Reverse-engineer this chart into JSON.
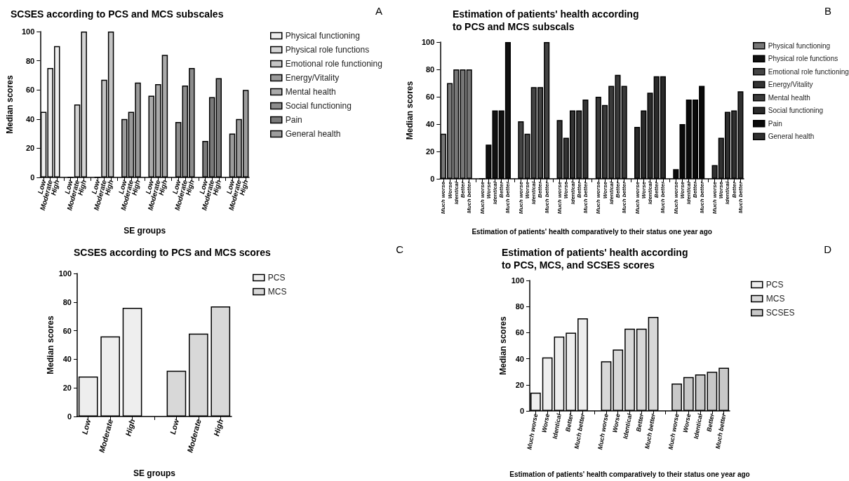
{
  "chart_data": [
    {
      "type": "bar",
      "title": "SCSES according to PCS and MCS subscales",
      "xlabel": "SE groups",
      "ylabel": "Median scores",
      "annotations": [
        "A"
      ],
      "legend": "right",
      "grid": false,
      "ylim": [
        0,
        100
      ],
      "yticks": [
        0,
        20,
        40,
        60,
        80,
        100
      ],
      "categories": [
        "Low",
        "Moderate",
        "High",
        null,
        "Low",
        "Moderate",
        "High",
        null,
        "Low",
        "Moderate",
        "High",
        null,
        "Low",
        "Moderate",
        "High",
        null,
        "Low",
        "Moderate",
        "High",
        null,
        "Low",
        "Moderate",
        "High",
        null,
        "Low",
        "Moderate",
        "High",
        null,
        "Low",
        "Moderate",
        "High"
      ],
      "series": [
        {
          "name": "Physical functioning",
          "color": "#eeeeee",
          "values": [
            45,
            75,
            90,
            null,
            null,
            null,
            null,
            null,
            null,
            null,
            null,
            null,
            null,
            null,
            null,
            null,
            null,
            null,
            null,
            null,
            null,
            null,
            null,
            null,
            null,
            null,
            null,
            null,
            null,
            null,
            null
          ]
        },
        {
          "name": "Physical role functions",
          "color": "#d4d4d4",
          "values": [
            null,
            null,
            null,
            null,
            0,
            50,
            100,
            null,
            null,
            null,
            null,
            null,
            null,
            null,
            null,
            null,
            null,
            null,
            null,
            null,
            null,
            null,
            null,
            null,
            null,
            null,
            null,
            null,
            null,
            null,
            null
          ]
        },
        {
          "name": "Emotional role functioning",
          "color": "#c4c4c4",
          "values": [
            null,
            null,
            null,
            null,
            null,
            null,
            null,
            null,
            0,
            67,
            100,
            null,
            null,
            null,
            null,
            null,
            null,
            null,
            null,
            null,
            null,
            null,
            null,
            null,
            null,
            null,
            null,
            null,
            null,
            null,
            null
          ]
        },
        {
          "name": "Energy/Vitality",
          "color": "#9a9a9a",
          "values": [
            null,
            null,
            null,
            null,
            null,
            null,
            null,
            null,
            null,
            null,
            null,
            null,
            40,
            45,
            65,
            null,
            null,
            null,
            null,
            null,
            null,
            null,
            null,
            null,
            null,
            null,
            null,
            null,
            null,
            null,
            null
          ]
        },
        {
          "name": "Mental health",
          "color": "#aaaaaa",
          "values": [
            null,
            null,
            null,
            null,
            null,
            null,
            null,
            null,
            null,
            null,
            null,
            null,
            null,
            null,
            null,
            null,
            56,
            64,
            84,
            null,
            null,
            null,
            null,
            null,
            null,
            null,
            null,
            null,
            null,
            null,
            null
          ]
        },
        {
          "name": "Social functioning",
          "color": "#8c8c8c",
          "values": [
            null,
            null,
            null,
            null,
            null,
            null,
            null,
            null,
            null,
            null,
            null,
            null,
            null,
            null,
            null,
            null,
            null,
            null,
            null,
            null,
            38,
            63,
            75,
            null,
            null,
            null,
            null,
            null,
            null,
            null,
            null
          ]
        },
        {
          "name": "Pain",
          "color": "#7a7a7a",
          "values": [
            null,
            null,
            null,
            null,
            null,
            null,
            null,
            null,
            null,
            null,
            null,
            null,
            null,
            null,
            null,
            null,
            null,
            null,
            null,
            null,
            null,
            null,
            null,
            null,
            25,
            55,
            68,
            null,
            null,
            null,
            null
          ]
        },
        {
          "name": "General health",
          "color": "#9c9c9c",
          "values": [
            null,
            null,
            null,
            null,
            null,
            null,
            null,
            null,
            null,
            null,
            null,
            null,
            null,
            null,
            null,
            null,
            null,
            null,
            null,
            null,
            null,
            null,
            null,
            null,
            null,
            null,
            null,
            null,
            30,
            40,
            60
          ]
        }
      ]
    },
    {
      "type": "bar",
      "title": "Estimation of patients' health according\nto PCS and MCS subscals",
      "xlabel": "Estimation of patients' health comparatively to their status one year ago",
      "ylabel": "Median scores",
      "annotations": [
        "B"
      ],
      "legend": "right",
      "grid": false,
      "ylim": [
        0,
        100
      ],
      "yticks": [
        0,
        20,
        40,
        60,
        80,
        100
      ],
      "categories": [
        "Much worse",
        "Worse",
        "Identical",
        "Better",
        "Much better",
        null,
        "Much worse",
        "Worse",
        "Identical",
        "Better",
        "Much better",
        null,
        "Much worse",
        "Worse",
        "Identical",
        "Better",
        "Much better",
        null,
        "Much worse",
        "Worse",
        "Identical",
        "Better",
        "Much better",
        null,
        "Much worse",
        "Worse",
        "Identical",
        "Better",
        "Much better",
        null,
        "Much worse",
        "Worse",
        "Identical",
        "Better",
        "Much better",
        null,
        "Much worse",
        "Worse",
        "Identical",
        "Better",
        "Much better",
        null,
        "Much worse",
        "Worse",
        "Identical",
        "Better",
        "Much better"
      ],
      "series": [
        {
          "name": "Physical functioning",
          "color": "#777777",
          "values": [
            33,
            70,
            80,
            80,
            80,
            null,
            null,
            null,
            null,
            null,
            null,
            null,
            null,
            null,
            null,
            null,
            null,
            null,
            null,
            null,
            null,
            null,
            null,
            null,
            null,
            null,
            null,
            null,
            null,
            null,
            null,
            null,
            null,
            null,
            null,
            null,
            null,
            null,
            null,
            null,
            null,
            null,
            null,
            null,
            null,
            null,
            null
          ]
        },
        {
          "name": "Physical role functions",
          "color": "#111111",
          "values": [
            null,
            null,
            null,
            null,
            null,
            null,
            0,
            25,
            50,
            50,
            100,
            null,
            null,
            null,
            null,
            null,
            null,
            null,
            null,
            null,
            null,
            null,
            null,
            null,
            null,
            null,
            null,
            null,
            null,
            null,
            null,
            null,
            null,
            null,
            null,
            null,
            null,
            null,
            null,
            null,
            null,
            null,
            null,
            null,
            null,
            null,
            null
          ]
        },
        {
          "name": "Emotional role functioning",
          "color": "#444444",
          "values": [
            null,
            null,
            null,
            null,
            null,
            null,
            null,
            null,
            null,
            null,
            null,
            null,
            42,
            33,
            67,
            67,
            100,
            null,
            null,
            null,
            null,
            null,
            null,
            null,
            null,
            null,
            null,
            null,
            null,
            null,
            null,
            null,
            null,
            null,
            null,
            null,
            null,
            null,
            null,
            null,
            null,
            null,
            null,
            null,
            null,
            null,
            null
          ]
        },
        {
          "name": "Energy/Vitality",
          "color": "#333333",
          "values": [
            null,
            null,
            null,
            null,
            null,
            null,
            null,
            null,
            null,
            null,
            null,
            null,
            null,
            null,
            null,
            null,
            null,
            null,
            43,
            30,
            50,
            50,
            58,
            null,
            null,
            null,
            null,
            null,
            null,
            null,
            null,
            null,
            null,
            null,
            null,
            null,
            null,
            null,
            null,
            null,
            null,
            null,
            null,
            null,
            null,
            null,
            null
          ]
        },
        {
          "name": "Mental health",
          "color": "#3a3a3a",
          "values": [
            null,
            null,
            null,
            null,
            null,
            null,
            null,
            null,
            null,
            null,
            null,
            null,
            null,
            null,
            null,
            null,
            null,
            null,
            null,
            null,
            null,
            null,
            null,
            null,
            60,
            54,
            68,
            76,
            68,
            null,
            null,
            null,
            null,
            null,
            null,
            null,
            null,
            null,
            null,
            null,
            null,
            null,
            null,
            null,
            null,
            null,
            null
          ]
        },
        {
          "name": "Social functioning",
          "color": "#2a2a2a",
          "values": [
            null,
            null,
            null,
            null,
            null,
            null,
            null,
            null,
            null,
            null,
            null,
            null,
            null,
            null,
            null,
            null,
            null,
            null,
            null,
            null,
            null,
            null,
            null,
            null,
            null,
            null,
            null,
            null,
            null,
            null,
            38,
            50,
            63,
            75,
            75,
            null,
            null,
            null,
            null,
            null,
            null,
            null,
            null,
            null,
            null,
            null,
            null
          ]
        },
        {
          "name": "Pain",
          "color": "#0a0a0a",
          "values": [
            null,
            null,
            null,
            null,
            null,
            null,
            null,
            null,
            null,
            null,
            null,
            null,
            null,
            null,
            null,
            null,
            null,
            null,
            null,
            null,
            null,
            null,
            null,
            null,
            null,
            null,
            null,
            null,
            null,
            null,
            null,
            null,
            null,
            null,
            null,
            null,
            7,
            40,
            58,
            58,
            68,
            null,
            null,
            null,
            null,
            null,
            null
          ]
        },
        {
          "name": "General health",
          "color": "#303030",
          "values": [
            null,
            null,
            null,
            null,
            null,
            null,
            null,
            null,
            null,
            null,
            null,
            null,
            null,
            null,
            null,
            null,
            null,
            null,
            null,
            null,
            null,
            null,
            null,
            null,
            null,
            null,
            null,
            null,
            null,
            null,
            null,
            null,
            null,
            null,
            null,
            null,
            null,
            null,
            null,
            null,
            null,
            null,
            10,
            30,
            49,
            50,
            64
          ]
        }
      ]
    },
    {
      "type": "bar",
      "title": "SCSES according to PCS and MCS scores",
      "xlabel": "SE groups",
      "ylabel": "Median scores",
      "annotations": [
        "C"
      ],
      "legend": "right",
      "grid": false,
      "ylim": [
        0,
        100
      ],
      "yticks": [
        0,
        20,
        40,
        60,
        80,
        100
      ],
      "categories": [
        "Low",
        "Moderate",
        "High",
        null,
        "Low",
        "Moderate",
        "High"
      ],
      "series": [
        {
          "name": "PCS",
          "color": "#eeeeee",
          "values": [
            28,
            56,
            76,
            null,
            null,
            null,
            null
          ]
        },
        {
          "name": "MCS",
          "color": "#d8d8d8",
          "values": [
            null,
            null,
            null,
            null,
            32,
            58,
            77
          ]
        }
      ]
    },
    {
      "type": "bar",
      "title": "Estimation of patients' health according\nto PCS, MCS, and SCSES scores",
      "xlabel": "Estimation of patients' health comparatively to their status one year ago",
      "ylabel": "Median scores",
      "annotations": [
        "D"
      ],
      "legend": "right",
      "grid": false,
      "ylim": [
        0,
        100
      ],
      "yticks": [
        0,
        20,
        40,
        60,
        80,
        100
      ],
      "categories": [
        "Much worse",
        "Worse",
        "Identical",
        "Better",
        "Much better",
        null,
        "Much worse",
        "Worse",
        "Identical",
        "Better",
        "Much better",
        null,
        "Much worse",
        "Worse",
        "Identical",
        "Better",
        "Much better"
      ],
      "series": [
        {
          "name": "PCS",
          "color": "#eeeeee",
          "values": [
            14,
            41,
            57,
            60,
            71,
            null,
            null,
            null,
            null,
            null,
            null,
            null,
            null,
            null,
            null,
            null,
            null
          ]
        },
        {
          "name": "MCS",
          "color": "#d8d8d8",
          "values": [
            null,
            null,
            null,
            null,
            null,
            null,
            38,
            47,
            63,
            63,
            72,
            null,
            null,
            null,
            null,
            null,
            null
          ]
        },
        {
          "name": "SCSES",
          "color": "#c8c8c8",
          "values": [
            null,
            null,
            null,
            null,
            null,
            null,
            null,
            null,
            null,
            null,
            null,
            null,
            21,
            26,
            28,
            30,
            33
          ]
        }
      ]
    }
  ]
}
